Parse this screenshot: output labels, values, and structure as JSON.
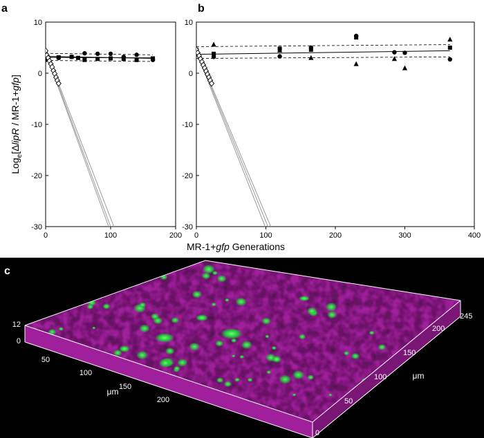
{
  "panel_labels": {
    "a": "a",
    "b": "b",
    "c": "c"
  },
  "shared": {
    "xlabel_prefix": "MR-1+",
    "xlabel_italic": "gfp",
    "xlabel_suffix": " Generations",
    "ylabel_parts": {
      "log": "Log",
      "sub": "e",
      "open": "[Δ",
      "gene": "lipR",
      "mid": " / MR-1+",
      "gfp": "gfp",
      "close": "]"
    }
  },
  "colors": {
    "filled": "#000000",
    "open_edge": "#000000",
    "open_fill": "#ffffff",
    "decline_line": "#9a9a9a",
    "confocal_bg": "#000000",
    "biofilm": "#a0209c",
    "gfp": "#22c83a"
  },
  "chart_data": [
    {
      "id": "a",
      "type": "scatter",
      "xlim": [
        0,
        200
      ],
      "ylim": [
        -30,
        10
      ],
      "xticks": [
        0,
        100,
        200
      ],
      "yticks": [
        10,
        0,
        -10,
        -20,
        -30
      ],
      "series": [
        {
          "marker": "circle-filled",
          "points": [
            [
              0,
              2.6
            ],
            [
              0,
              3.8
            ],
            [
              20,
              3.0
            ],
            [
              40,
              3.2
            ],
            [
              60,
              3.9
            ],
            [
              80,
              3.8
            ],
            [
              100,
              3.8
            ],
            [
              120,
              3.2
            ],
            [
              140,
              3.6
            ],
            [
              165,
              2.6
            ]
          ]
        },
        {
          "marker": "square-filled",
          "points": [
            [
              0,
              3.4
            ],
            [
              20,
              3.1
            ],
            [
              40,
              3.2
            ],
            [
              50,
              3.0
            ],
            [
              60,
              2.6
            ],
            [
              80,
              2.8
            ],
            [
              100,
              2.9
            ],
            [
              120,
              2.8
            ],
            [
              140,
              2.6
            ],
            [
              165,
              2.9
            ]
          ]
        },
        {
          "marker": "diamond-open",
          "points": [
            [
              0,
              4.4
            ],
            [
              2,
              3.5
            ],
            [
              4,
              3.0
            ],
            [
              6,
              2.4
            ],
            [
              8,
              1.8
            ],
            [
              10,
              1.2
            ],
            [
              12,
              0.5
            ],
            [
              14,
              -0.1
            ],
            [
              16,
              -0.8
            ],
            [
              18,
              -1.4
            ],
            [
              20,
              -2.0
            ]
          ]
        }
      ],
      "fits": [
        {
          "style": "solid",
          "points": [
            [
              0,
              3.3
            ],
            [
              165,
              2.9
            ]
          ]
        },
        {
          "style": "solid",
          "points": [
            [
              0,
              3.1
            ],
            [
              165,
              3.0
            ]
          ]
        },
        {
          "style": "dashed",
          "points": [
            [
              0,
              3.9
            ],
            [
              165,
              3.6
            ]
          ]
        },
        {
          "style": "dashed",
          "points": [
            [
              0,
              2.5
            ],
            [
              165,
              2.3
            ]
          ]
        },
        {
          "style": "decline",
          "points": [
            [
              0,
              4.3
            ],
            [
              100,
              -30
            ]
          ]
        },
        {
          "style": "decline",
          "points": [
            [
              0,
              4.5
            ],
            [
              105,
              -30
            ]
          ]
        },
        {
          "style": "decline",
          "points": [
            [
              0,
              4.1
            ],
            [
              97,
              -30
            ]
          ]
        }
      ]
    },
    {
      "id": "b",
      "type": "scatter",
      "xlim": [
        0,
        400
      ],
      "ylim": [
        -30,
        10
      ],
      "xticks": [
        0,
        100,
        200,
        300,
        400
      ],
      "yticks": [
        10,
        0,
        -10,
        -20,
        -30
      ],
      "series": [
        {
          "marker": "circle-filled",
          "points": [
            [
              0,
              4.0
            ],
            [
              25,
              3.2
            ],
            [
              120,
              3.3
            ],
            [
              165,
              5.0
            ],
            [
              230,
              7.3
            ],
            [
              285,
              4.1
            ],
            [
              300,
              4.0
            ],
            [
              365,
              2.7
            ]
          ]
        },
        {
          "marker": "square-filled",
          "points": [
            [
              0,
              4.6
            ],
            [
              25,
              3.8
            ],
            [
              120,
              4.8
            ],
            [
              165,
              4.6
            ],
            [
              230,
              7.0
            ],
            [
              365,
              5.0
            ]
          ]
        },
        {
          "marker": "triangle-filled",
          "points": [
            [
              0,
              4.3
            ],
            [
              25,
              5.6
            ],
            [
              120,
              4.5
            ],
            [
              165,
              3.0
            ],
            [
              230,
              1.8
            ],
            [
              285,
              2.8
            ],
            [
              300,
              1.0
            ],
            [
              365,
              6.6
            ]
          ]
        },
        {
          "marker": "diamond-open",
          "points": [
            [
              0,
              4.6
            ],
            [
              2,
              4.0
            ],
            [
              4,
              3.4
            ],
            [
              6,
              2.8
            ],
            [
              8,
              2.2
            ],
            [
              10,
              1.6
            ],
            [
              12,
              1.0
            ],
            [
              14,
              0.4
            ],
            [
              16,
              -0.2
            ],
            [
              18,
              -0.8
            ],
            [
              20,
              -1.4
            ],
            [
              22,
              -2.0
            ]
          ]
        }
      ],
      "fits": [
        {
          "style": "solid",
          "points": [
            [
              0,
              3.7
            ],
            [
              365,
              4.4
            ]
          ]
        },
        {
          "style": "dashed",
          "points": [
            [
              0,
              5.2
            ],
            [
              365,
              5.6
            ]
          ]
        },
        {
          "style": "dashed",
          "points": [
            [
              0,
              2.9
            ],
            [
              365,
              3.2
            ]
          ]
        },
        {
          "style": "decline",
          "points": [
            [
              0,
              4.4
            ],
            [
              103,
              -30
            ]
          ]
        },
        {
          "style": "decline",
          "points": [
            [
              0,
              4.6
            ],
            [
              107,
              -30
            ]
          ]
        },
        {
          "style": "decline",
          "points": [
            [
              0,
              4.2
            ],
            [
              99,
              -30
            ]
          ]
        }
      ]
    }
  ],
  "confocal": {
    "z_ticks": [
      "12",
      "0"
    ],
    "x_ticks": [
      "50",
      "100",
      "150",
      "200"
    ],
    "y_ticks": [
      "0",
      "50",
      "100",
      "150",
      "200",
      "245"
    ],
    "x_unit": "μm",
    "y_unit": "μm"
  }
}
